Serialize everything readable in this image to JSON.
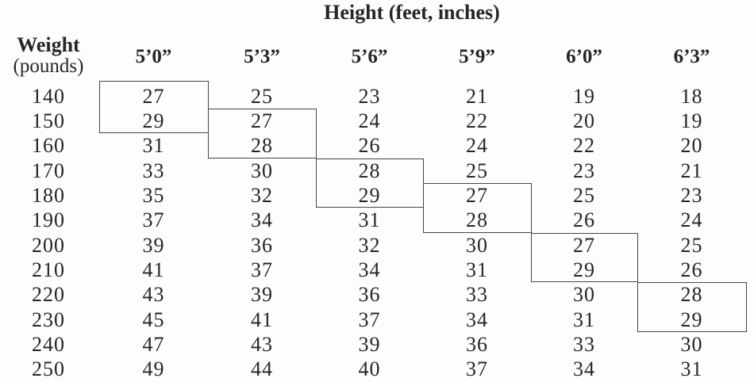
{
  "title": "Height (feet, inches)",
  "row_header": {
    "line1": "Weight",
    "line2": "(pounds)"
  },
  "columns": [
    "5’0”",
    "5’3”",
    "5’6”",
    "5’9”",
    "6’0”",
    "6’3”"
  ],
  "rows": [
    {
      "weight": "140",
      "values": [
        "27",
        "25",
        "23",
        "21",
        "19",
        "18"
      ]
    },
    {
      "weight": "150",
      "values": [
        "29",
        "27",
        "24",
        "22",
        "20",
        "19"
      ]
    },
    {
      "weight": "160",
      "values": [
        "31",
        "28",
        "26",
        "24",
        "22",
        "20"
      ]
    },
    {
      "weight": "170",
      "values": [
        "33",
        "30",
        "28",
        "25",
        "23",
        "21"
      ]
    },
    {
      "weight": "180",
      "values": [
        "35",
        "32",
        "29",
        "27",
        "25",
        "23"
      ]
    },
    {
      "weight": "190",
      "values": [
        "37",
        "34",
        "31",
        "28",
        "26",
        "24"
      ]
    },
    {
      "weight": "200",
      "values": [
        "39",
        "36",
        "32",
        "30",
        "27",
        "25"
      ]
    },
    {
      "weight": "210",
      "values": [
        "41",
        "37",
        "34",
        "31",
        "29",
        "26"
      ]
    },
    {
      "weight": "220",
      "values": [
        "43",
        "39",
        "36",
        "33",
        "30",
        "28"
      ]
    },
    {
      "weight": "230",
      "values": [
        "45",
        "41",
        "37",
        "34",
        "31",
        "29"
      ]
    },
    {
      "weight": "240",
      "values": [
        "47",
        "43",
        "39",
        "36",
        "33",
        "30"
      ]
    },
    {
      "weight": "250",
      "values": [
        "49",
        "44",
        "40",
        "37",
        "34",
        "31"
      ]
    }
  ],
  "highlight_boxes": [
    {
      "column_index": 0,
      "column": "5’0”",
      "row_start_index": 0,
      "row_end_index": 1,
      "weights": [
        "140",
        "150"
      ],
      "values": [
        "27",
        "29"
      ]
    },
    {
      "column_index": 1,
      "column": "5’3”",
      "row_start_index": 1,
      "row_end_index": 2,
      "weights": [
        "150",
        "160"
      ],
      "values": [
        "27",
        "28"
      ]
    },
    {
      "column_index": 2,
      "column": "5’6”",
      "row_start_index": 3,
      "row_end_index": 4,
      "weights": [
        "170",
        "180"
      ],
      "values": [
        "28",
        "29"
      ]
    },
    {
      "column_index": 3,
      "column": "5’9”",
      "row_start_index": 4,
      "row_end_index": 5,
      "weights": [
        "180",
        "190"
      ],
      "values": [
        "27",
        "28"
      ]
    },
    {
      "column_index": 4,
      "column": "6’0”",
      "row_start_index": 6,
      "row_end_index": 7,
      "weights": [
        "200",
        "210"
      ],
      "values": [
        "27",
        "29"
      ]
    },
    {
      "column_index": 5,
      "column": "6’3”",
      "row_start_index": 8,
      "row_end_index": 9,
      "weights": [
        "220",
        "230"
      ],
      "values": [
        "28",
        "29"
      ]
    }
  ],
  "colors": {
    "background": "#fdfdfd",
    "text": "#262626",
    "box_border": "#464646"
  }
}
